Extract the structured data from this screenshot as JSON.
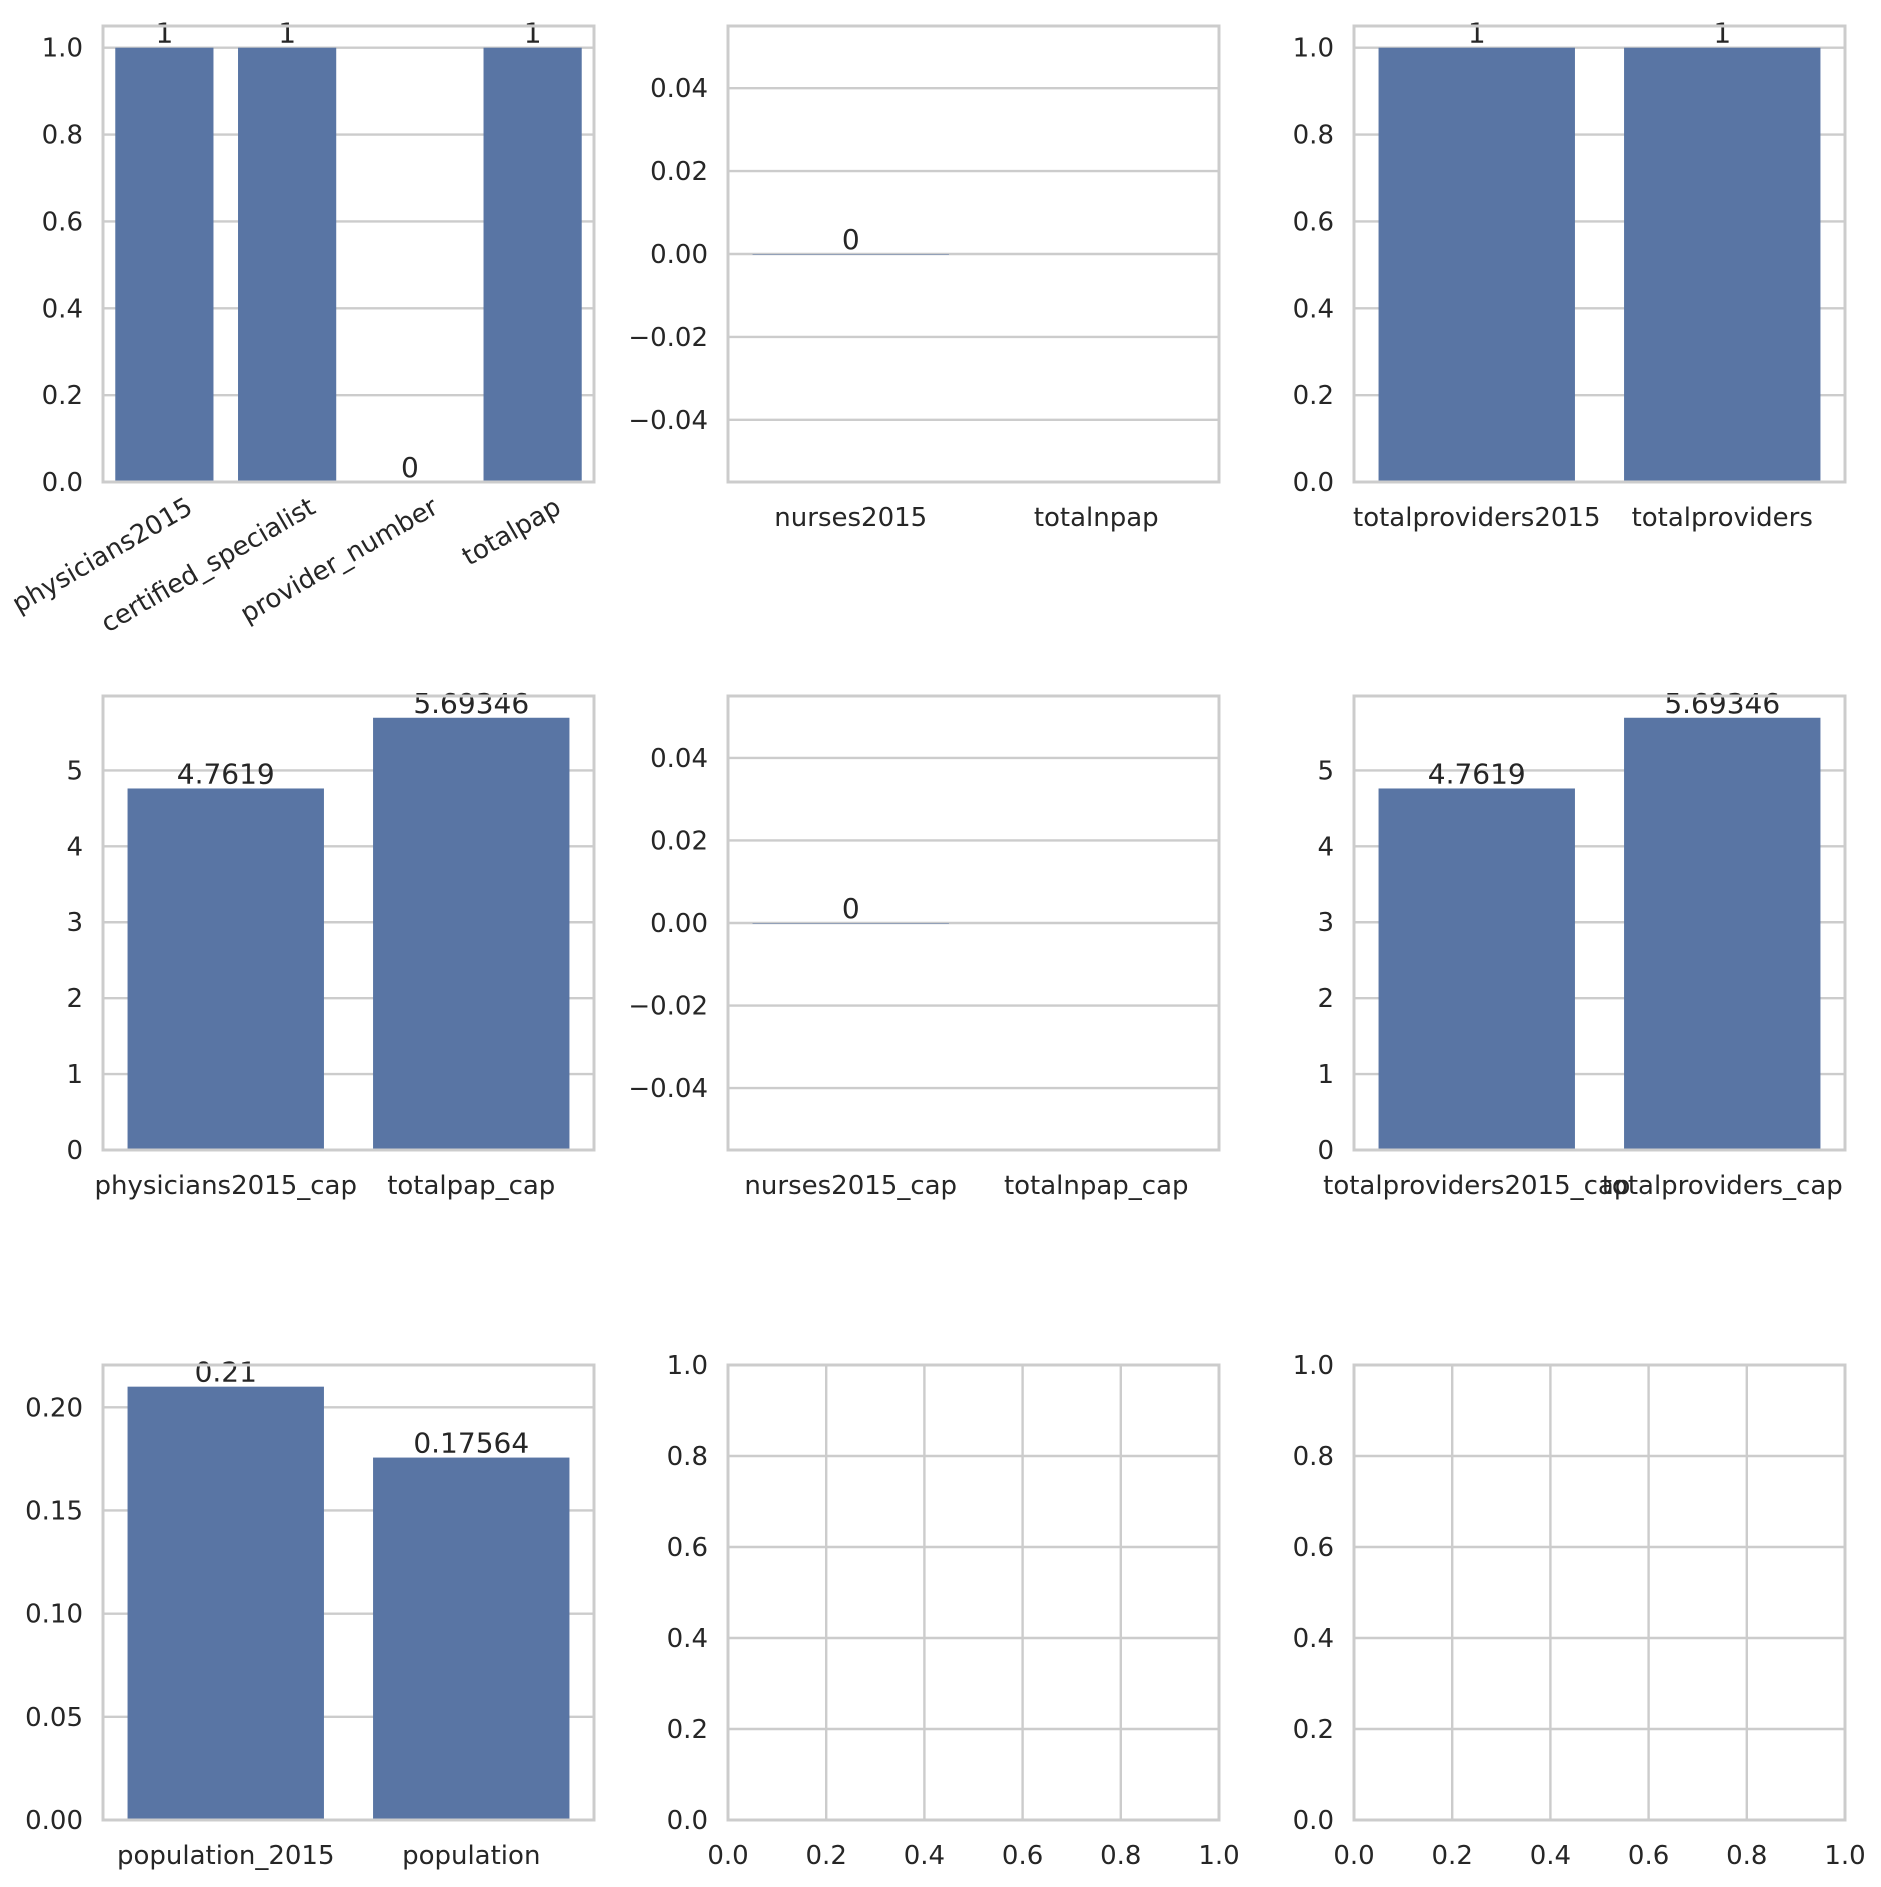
{
  "chart_data": [
    {
      "type": "bar",
      "categories": [
        "physicians2015",
        "certified_specialist",
        "provider_number",
        "totalpap"
      ],
      "values": [
        1,
        1,
        0,
        1
      ],
      "data_labels": [
        "1",
        "1",
        "0",
        "1"
      ],
      "yticks": [
        "0.0",
        "0.2",
        "0.4",
        "0.6",
        "0.8",
        "1.0"
      ],
      "ylim": [
        0,
        1.05
      ],
      "xtick_rotation": 30,
      "color": "#5975a4",
      "grid": true
    },
    {
      "type": "bar",
      "categories": [
        "nurses2015",
        "totalnpap"
      ],
      "values": [
        0,
        null
      ],
      "data_labels": [
        "0",
        ""
      ],
      "yticks": [
        "−0.04",
        "−0.02",
        "0.00",
        "0.02",
        "0.04"
      ],
      "ylim": [
        -0.055,
        0.055
      ],
      "color": "#5975a4",
      "grid": true
    },
    {
      "type": "bar",
      "categories": [
        "totalproviders2015",
        "totalproviders"
      ],
      "values": [
        1,
        1
      ],
      "data_labels": [
        "1",
        "1"
      ],
      "yticks": [
        "0.0",
        "0.2",
        "0.4",
        "0.6",
        "0.8",
        "1.0"
      ],
      "ylim": [
        0,
        1.05
      ],
      "color": "#5975a4",
      "grid": true
    },
    {
      "type": "bar",
      "categories": [
        "physicians2015_cap",
        "totalpap_cap"
      ],
      "values": [
        4.7619,
        5.69346
      ],
      "data_labels": [
        "4.7619",
        "5.69346"
      ],
      "yticks": [
        "0",
        "1",
        "2",
        "3",
        "4",
        "5"
      ],
      "ylim": [
        0,
        5.98
      ],
      "color": "#5975a4",
      "grid": true
    },
    {
      "type": "bar",
      "categories": [
        "nurses2015_cap",
        "totalnpap_cap"
      ],
      "values": [
        0,
        null
      ],
      "data_labels": [
        "0",
        ""
      ],
      "yticks": [
        "−0.04",
        "−0.02",
        "0.00",
        "0.02",
        "0.04"
      ],
      "ylim": [
        -0.055,
        0.055
      ],
      "color": "#5975a4",
      "grid": true
    },
    {
      "type": "bar",
      "categories": [
        "totalproviders2015_cap",
        "totalproviders_cap"
      ],
      "values": [
        4.7619,
        5.69346
      ],
      "data_labels": [
        "4.7619",
        "5.69346"
      ],
      "yticks": [
        "0",
        "1",
        "2",
        "3",
        "4",
        "5"
      ],
      "ylim": [
        0,
        5.98
      ],
      "color": "#5975a4",
      "grid": true
    },
    {
      "type": "bar",
      "categories": [
        "population_2015",
        "population"
      ],
      "values": [
        0.21,
        0.17564
      ],
      "data_labels": [
        "0.21",
        "0.17564"
      ],
      "yticks": [
        "0.00",
        "0.05",
        "0.10",
        "0.15",
        "0.20"
      ],
      "ylim": [
        0,
        0.2205
      ],
      "color": "#5975a4",
      "grid": true
    },
    {
      "type": "empty",
      "xticks": [
        "0.0",
        "0.2",
        "0.4",
        "0.6",
        "0.8",
        "1.0"
      ],
      "yticks": [
        "0.0",
        "0.2",
        "0.4",
        "0.6",
        "0.8",
        "1.0"
      ],
      "xlim": [
        0,
        1
      ],
      "ylim": [
        0,
        1
      ],
      "grid": true
    },
    {
      "type": "empty",
      "xticks": [
        "0.0",
        "0.2",
        "0.4",
        "0.6",
        "0.8",
        "1.0"
      ],
      "yticks": [
        "0.0",
        "0.2",
        "0.4",
        "0.6",
        "0.8",
        "1.0"
      ],
      "xlim": [
        0,
        1
      ],
      "ylim": [
        0,
        1
      ],
      "grid": true
    }
  ]
}
